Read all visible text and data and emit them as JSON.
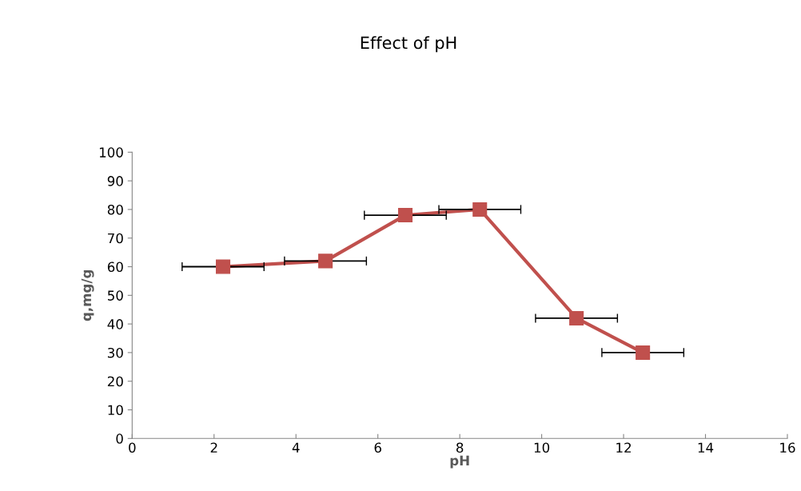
{
  "chart_data": {
    "type": "line",
    "title": "Effect of pH",
    "xlabel": "pH",
    "ylabel": "q,mg/g",
    "x": [
      2.22,
      4.72,
      6.67,
      8.49,
      10.85,
      12.47
    ],
    "series": [
      {
        "color": "#c0504d",
        "values": [
          60,
          62,
          78,
          80,
          42,
          30
        ],
        "xerrors": [
          1,
          1,
          1,
          1,
          1,
          1
        ]
      }
    ],
    "xlim": [
      0,
      16
    ],
    "xticks": [
      0,
      2,
      4,
      6,
      8,
      10,
      12,
      14,
      16
    ],
    "ylim": [
      0,
      100
    ],
    "yticks": [
      0,
      10,
      20,
      30,
      40,
      50,
      60,
      70,
      80,
      90,
      100
    ],
    "grid": false,
    "legend": false,
    "marker": "square",
    "line_style": "solid"
  }
}
